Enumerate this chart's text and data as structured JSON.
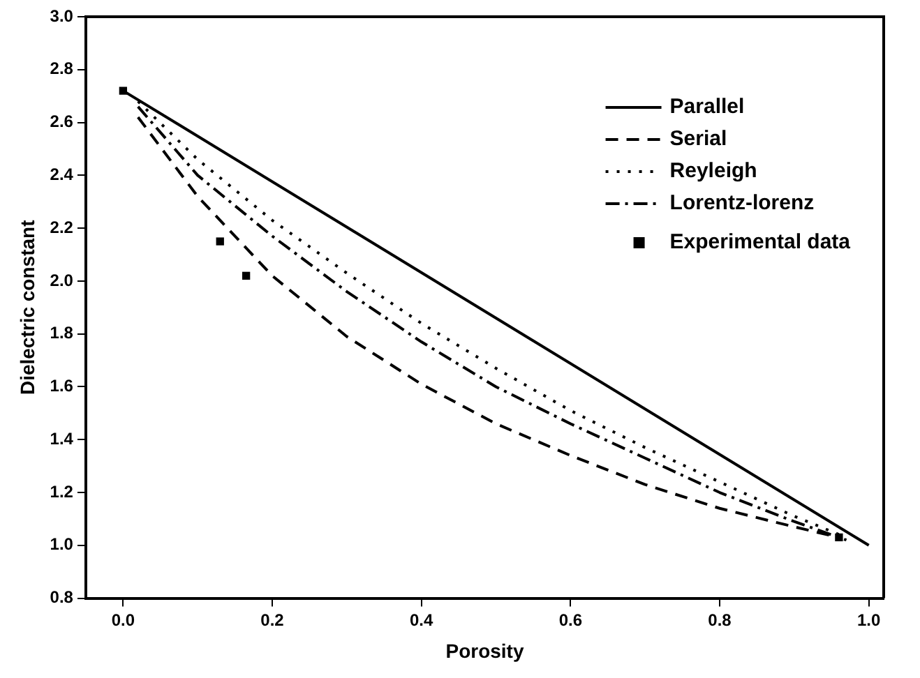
{
  "chart_data": {
    "type": "line",
    "xlabel": "Porosity",
    "ylabel": "Dielectric constant",
    "xlim": [
      -0.05,
      1.02
    ],
    "xticks": [
      {
        "value": 0.0,
        "label": "0.0"
      },
      {
        "value": 0.2,
        "label": "0.2"
      },
      {
        "value": 0.4,
        "label": "0.4"
      },
      {
        "value": 0.6,
        "label": "0.6"
      },
      {
        "value": 0.8,
        "label": "0.8"
      },
      {
        "value": 1.0,
        "label": "1.0"
      }
    ],
    "ylim": [
      0.8,
      3.0
    ],
    "yticks": [
      {
        "value": 0.8,
        "label": "0.8"
      },
      {
        "value": 1.0,
        "label": "1.0"
      },
      {
        "value": 1.2,
        "label": "1.2"
      },
      {
        "value": 1.4,
        "label": "1.4"
      },
      {
        "value": 1.6,
        "label": "1.6"
      },
      {
        "value": 1.8,
        "label": "1.8"
      },
      {
        "value": 2.0,
        "label": "2.0"
      },
      {
        "value": 2.2,
        "label": "2.2"
      },
      {
        "value": 2.4,
        "label": "2.4"
      },
      {
        "value": 2.6,
        "label": "2.6"
      },
      {
        "value": 2.8,
        "label": "2.8"
      },
      {
        "value": 3.0,
        "label": "3.0"
      }
    ],
    "grid": false,
    "legend": "top right",
    "series": [
      {
        "name": "Parallel",
        "type": "line",
        "line_style": "solid",
        "color": "#000000",
        "x": [
          0,
          1.0
        ],
        "values": [
          2.72,
          1.0
        ]
      },
      {
        "name": "Serial",
        "type": "line",
        "line_style": "dashed",
        "color": "#000000",
        "x": [
          0.02,
          0.1,
          0.2,
          0.3,
          0.4,
          0.5,
          0.6,
          0.7,
          0.8,
          0.9,
          0.96
        ],
        "values": [
          2.62,
          2.32,
          2.02,
          1.79,
          1.61,
          1.46,
          1.34,
          1.23,
          1.14,
          1.07,
          1.03
        ]
      },
      {
        "name": "Reyleigh",
        "type": "line",
        "line_style": "dotted",
        "color": "#000000",
        "x": [
          0.02,
          0.1,
          0.2,
          0.3,
          0.4,
          0.5,
          0.6,
          0.7,
          0.8,
          0.9,
          0.97
        ],
        "values": [
          2.68,
          2.46,
          2.23,
          2.03,
          1.84,
          1.67,
          1.51,
          1.37,
          1.24,
          1.11,
          1.03
        ]
      },
      {
        "name": "Lorentz-lorenz",
        "type": "line",
        "line_style": "dashdot",
        "color": "#000000",
        "x": [
          0.02,
          0.1,
          0.2,
          0.3,
          0.4,
          0.5,
          0.6,
          0.7,
          0.8,
          0.9,
          0.97
        ],
        "values": [
          2.66,
          2.4,
          2.17,
          1.96,
          1.77,
          1.6,
          1.46,
          1.33,
          1.2,
          1.09,
          1.02
        ]
      },
      {
        "name": "Experimental data",
        "type": "scatter",
        "marker": "square",
        "color": "#000000",
        "x": [
          0.0,
          0.13,
          0.165,
          0.96
        ],
        "values": [
          2.72,
          2.15,
          2.02,
          1.03
        ]
      }
    ]
  }
}
